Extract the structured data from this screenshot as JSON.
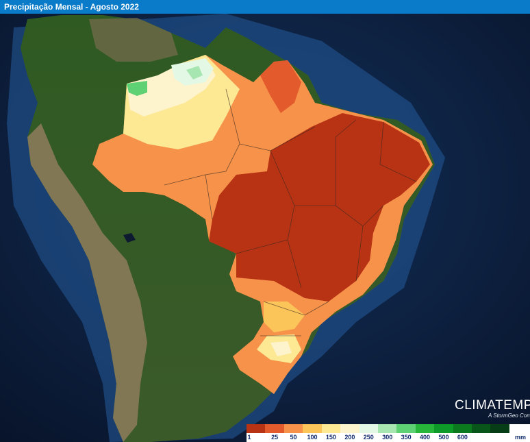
{
  "header": {
    "title": "Precipitação Mensal - Agosto 2022"
  },
  "brand": {
    "name": "CLIMATEMPO",
    "subtitle": "A StormGeo Company"
  },
  "legend": {
    "unit": "mm",
    "colors": [
      "#b83214",
      "#e35a2d",
      "#f6924a",
      "#fbc55a",
      "#fde894",
      "#fdf3cc",
      "#e4f8e6",
      "#a7e6b1",
      "#5ed174",
      "#28b63a",
      "#0e9a28",
      "#0b7a1e",
      "#08561a",
      "#063c16"
    ],
    "labels": [
      "1",
      "25",
      "50",
      "100",
      "150",
      "200",
      "250",
      "300",
      "350",
      "400",
      "500",
      "600"
    ]
  },
  "map": {
    "ocean_color": "#0b1a36",
    "land_color": "#274e1d",
    "andes_color": "#8a7a5a"
  }
}
